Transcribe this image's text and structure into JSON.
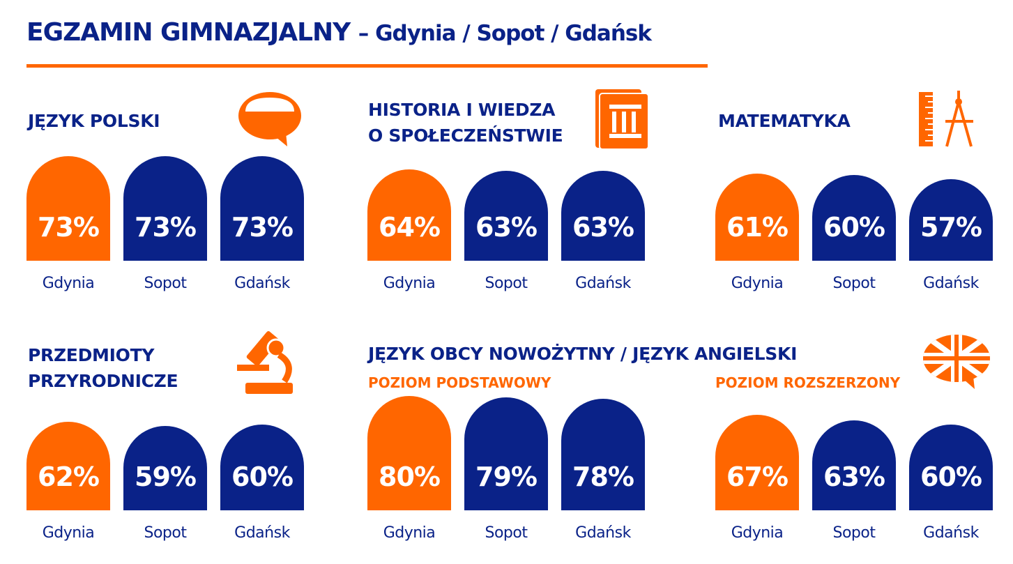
{
  "title": "EGZAMIN GIMNAZJALNY",
  "subtitle": "– Gdynia / Sopot / Gdańsk",
  "colors": {
    "accent": "#ff6600",
    "primary": "#0a2288"
  },
  "chart_data": [
    {
      "type": "bar",
      "title": "JĘZYK POLSKI",
      "icon": "speech-bubble-icon",
      "categories": [
        "Gdynia",
        "Sopot",
        "Gdańsk"
      ],
      "values": [
        73,
        73,
        73
      ],
      "labels": [
        "73%",
        "73%",
        "73%"
      ]
    },
    {
      "type": "bar",
      "title": "HISTORIA I WIEDZA\nO SPOŁECZEŃSTWIE",
      "icon": "book-columns-icon",
      "categories": [
        "Gdynia",
        "Sopot",
        "Gdańsk"
      ],
      "values": [
        64,
        63,
        63
      ],
      "labels": [
        "64%",
        "63%",
        "63%"
      ]
    },
    {
      "type": "bar",
      "title": "MATEMATYKA",
      "icon": "ruler-compass-icon",
      "categories": [
        "Gdynia",
        "Sopot",
        "Gdańsk"
      ],
      "values": [
        61,
        60,
        57
      ],
      "labels": [
        "61%",
        "60%",
        "57%"
      ]
    },
    {
      "type": "bar",
      "title": "PRZEDMIOTY\nPRZYRODNICZE",
      "icon": "microscope-icon",
      "categories": [
        "Gdynia",
        "Sopot",
        "Gdańsk"
      ],
      "values": [
        62,
        59,
        60
      ],
      "labels": [
        "62%",
        "59%",
        "60%"
      ]
    },
    {
      "type": "bar",
      "title": "JĘZYK OBCY NOWOŻYTNY / JĘZYK ANGIELSKI",
      "subtitle": "POZIOM PODSTAWOWY",
      "categories": [
        "Gdynia",
        "Sopot",
        "Gdańsk"
      ],
      "values": [
        80,
        79,
        78
      ],
      "labels": [
        "80%",
        "79%",
        "78%"
      ]
    },
    {
      "type": "bar",
      "subtitle": "POZIOM ROZSZERZONY",
      "icon": "uk-flag-bubble-icon",
      "categories": [
        "Gdynia",
        "Sopot",
        "Gdańsk"
      ],
      "values": [
        67,
        63,
        60
      ],
      "labels": [
        "67%",
        "63%",
        "60%"
      ]
    }
  ]
}
